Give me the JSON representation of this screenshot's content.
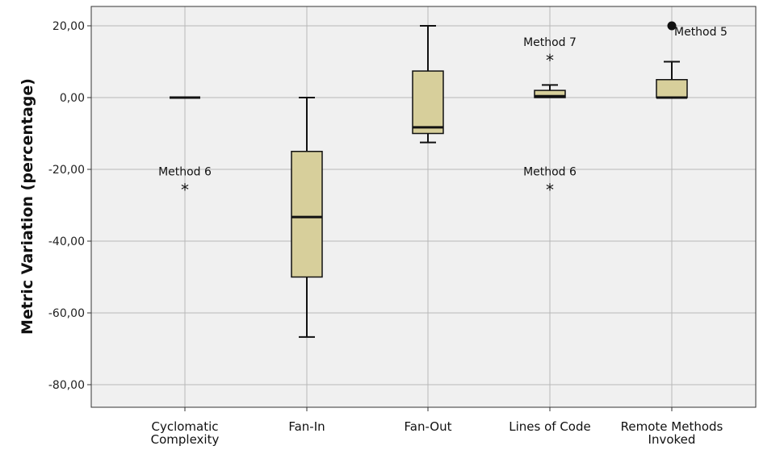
{
  "chart_data": {
    "type": "box",
    "ylabel": "Metric Variation (percentage)",
    "xlabel": "",
    "ylim": [
      -85,
      25
    ],
    "yticks": [
      20,
      0,
      -20,
      -40,
      -60,
      -80
    ],
    "ytick_labels": [
      "20,00",
      "0,00",
      "-20,00",
      "-40,00",
      "-60,00",
      "-80,00"
    ],
    "grid": true,
    "colors": {
      "box_fill": "#d7cf9b",
      "plot_bg": "#f0f0f0",
      "grid": "#b8b8b8"
    },
    "categories": [
      {
        "label_lines": [
          "Cyclomatic",
          "Complexity"
        ],
        "min": 0,
        "q1": 0,
        "median": 0,
        "q3": 0,
        "max": 0,
        "outliers": [
          {
            "value": -25,
            "marker": "star",
            "label": "Method 6"
          }
        ]
      },
      {
        "label_lines": [
          "Fan-In"
        ],
        "min": -66.7,
        "q1": -50,
        "median": -33.3,
        "q3": -15,
        "max": 0,
        "outliers": []
      },
      {
        "label_lines": [
          "Fan-Out"
        ],
        "min": -12.5,
        "q1": -10,
        "median": -8.3,
        "q3": 7.4,
        "max": 20,
        "outliers": []
      },
      {
        "label_lines": [
          "Lines of Code"
        ],
        "min": 0,
        "q1": 0,
        "median": 0.4,
        "q3": 2,
        "max": 3.5,
        "outliers": [
          {
            "value": 11,
            "marker": "star",
            "label": "Method 7"
          },
          {
            "value": -25,
            "marker": "star",
            "label": "Method 6"
          }
        ]
      },
      {
        "label_lines": [
          "Remote Methods",
          "Invoked"
        ],
        "min": 0,
        "q1": 0,
        "median": 0,
        "q3": 5,
        "max": 10,
        "outliers": [
          {
            "value": 20,
            "marker": "dot",
            "label": "Method 5"
          }
        ]
      }
    ]
  }
}
